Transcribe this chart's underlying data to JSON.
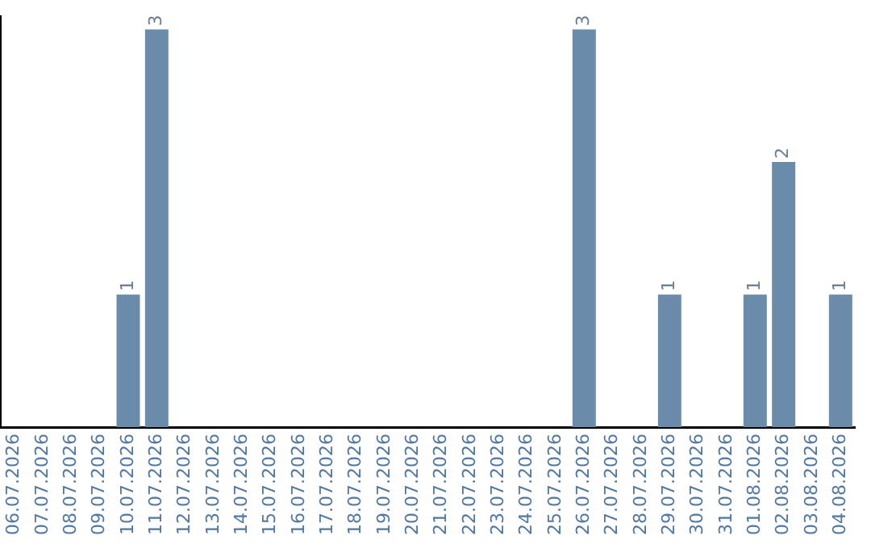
{
  "chart_data": {
    "type": "bar",
    "categories": [
      "06.07.2026",
      "07.07.2026",
      "08.07.2026",
      "09.07.2026",
      "10.07.2026",
      "11.07.2026",
      "12.07.2026",
      "13.07.2026",
      "14.07.2026",
      "15.07.2026",
      "16.07.2026",
      "17.07.2026",
      "18.07.2026",
      "19.07.2026",
      "20.07.2026",
      "21.07.2026",
      "22.07.2026",
      "23.07.2026",
      "24.07.2026",
      "25.07.2026",
      "26.07.2026",
      "27.07.2026",
      "28.07.2026",
      "29.07.2026",
      "30.07.2026",
      "31.07.2026",
      "01.08.2026",
      "02.08.2026",
      "03.08.2026",
      "04.08.2026"
    ],
    "values": [
      0,
      0,
      0,
      0,
      1,
      3,
      0,
      0,
      0,
      0,
      0,
      0,
      0,
      0,
      0,
      0,
      0,
      0,
      0,
      0,
      3,
      0,
      0,
      1,
      0,
      0,
      1,
      2,
      0,
      1
    ],
    "value_labels": [
      null,
      null,
      null,
      null,
      "1",
      "3",
      null,
      null,
      null,
      null,
      null,
      null,
      null,
      null,
      null,
      null,
      null,
      null,
      null,
      null,
      "3",
      null,
      null,
      "1",
      null,
      null,
      "1",
      "2",
      null,
      "1"
    ],
    "color": "#6a8caa",
    "ylim": [
      0,
      3.1
    ],
    "tick_labels": "x",
    "grid": false,
    "legend": false
  }
}
